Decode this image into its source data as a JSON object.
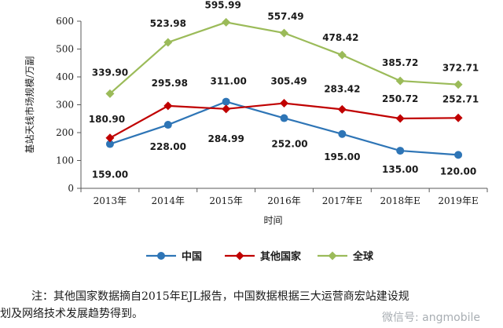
{
  "chart_data": {
    "type": "line",
    "title": "",
    "xlabel": "时间",
    "ylabel": "基站天线市场规模/万副",
    "ylim": [
      0,
      600
    ],
    "yticks": [
      0,
      100,
      200,
      300,
      400,
      500,
      600
    ],
    "categories": [
      "2013年",
      "2014年",
      "2015年",
      "2016年",
      "2017年E",
      "2018年E",
      "2019年E"
    ],
    "grid": false,
    "legend_position": "bottom",
    "series": [
      {
        "name": "中国",
        "color": "#2e75b6",
        "marker": "circle",
        "values": [
          159.0,
          228.0,
          311.0,
          252.0,
          195.0,
          135.0,
          120.0
        ]
      },
      {
        "name": "其他国家",
        "color": "#c00000",
        "marker": "diamond",
        "values": [
          180.9,
          295.98,
          284.99,
          305.49,
          283.42,
          250.72,
          252.71
        ]
      },
      {
        "name": "全球",
        "color": "#9bbb59",
        "marker": "diamond",
        "values": [
          339.9,
          523.98,
          595.99,
          557.49,
          478.42,
          385.72,
          372.71
        ]
      }
    ],
    "data_labels": {
      "中国": [
        "159.00",
        "228.00",
        "311.00",
        "252.00",
        "195.00",
        "135.00",
        "120.00"
      ],
      "其他国家": [
        "180.90",
        "295.98",
        "284.99",
        "305.49",
        "283.42",
        "250.72",
        "252.71"
      ],
      "全球": [
        "339.90",
        "523.98",
        "595.99",
        "557.49",
        "478.42",
        "385.72",
        "372.71"
      ]
    }
  },
  "note": {
    "line1": "注：其他国家数据摘自2015年EJL报告，中国数据根据三大运营商宏站建设规",
    "line2": "划及网络技术发展趋势得到。"
  },
  "watermark": "微信号: angmobile"
}
